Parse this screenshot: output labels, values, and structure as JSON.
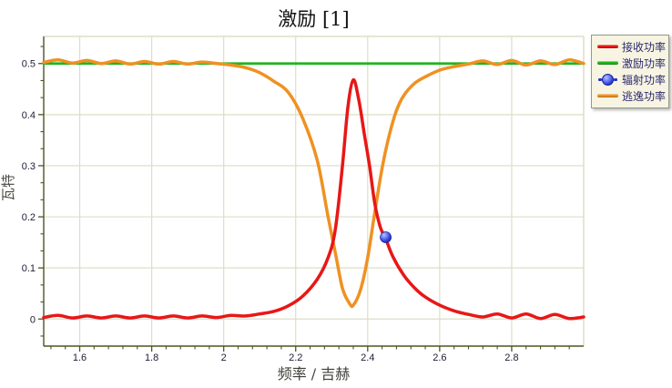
{
  "window": {
    "background": "#ffffff"
  },
  "colors": {
    "axis_dark": "#4c5624",
    "frame_light": "#d8d8bd",
    "gridline": "#deddc7",
    "tick_label": "#20203a",
    "axis_title": "#4a4a44",
    "title_text": "#121212",
    "legend_bg": "#f8f4e2",
    "legend_border": "#97978b",
    "legend_text": "#2a2a6e"
  },
  "chart_data": {
    "type": "line",
    "title": "激励 [1]",
    "xlabel": "频率 / 吉赫",
    "ylabel": "瓦特",
    "grid": true,
    "legend_position": "top-right-outside",
    "xlim": [
      1.5,
      3.0
    ],
    "ylim": [
      -0.053,
      0.553
    ],
    "xticks": {
      "values": [
        1.6,
        1.8,
        2.0,
        2.2,
        2.4,
        2.6,
        2.8
      ],
      "labels": [
        "1.6",
        "1.8",
        "2",
        "2.2",
        "2.4",
        "2.6",
        "2.8"
      ]
    },
    "yticks": {
      "values": [
        0,
        0.1,
        0.2,
        0.3,
        0.4,
        0.5
      ],
      "labels": [
        "0",
        "0.1",
        "0.2",
        "0.3",
        "0.4",
        "0.5"
      ]
    },
    "x_minor_step": 0.04,
    "y_minor_step": 0.03333,
    "series": [
      {
        "name": "接收功率",
        "kind": "line",
        "color": "#e81717",
        "width": 3.5,
        "points": [
          [
            1.5,
            0.003
          ],
          [
            1.54,
            0.007
          ],
          [
            1.58,
            0.002
          ],
          [
            1.62,
            0.006
          ],
          [
            1.66,
            0.002
          ],
          [
            1.7,
            0.006
          ],
          [
            1.74,
            0.002
          ],
          [
            1.78,
            0.006
          ],
          [
            1.82,
            0.002
          ],
          [
            1.86,
            0.006
          ],
          [
            1.9,
            0.002
          ],
          [
            1.94,
            0.006
          ],
          [
            1.98,
            0.003
          ],
          [
            2.02,
            0.007
          ],
          [
            2.06,
            0.006
          ],
          [
            2.1,
            0.01
          ],
          [
            2.14,
            0.015
          ],
          [
            2.18,
            0.026
          ],
          [
            2.22,
            0.045
          ],
          [
            2.26,
            0.078
          ],
          [
            2.29,
            0.12
          ],
          [
            2.31,
            0.175
          ],
          [
            2.33,
            0.3
          ],
          [
            2.345,
            0.415
          ],
          [
            2.36,
            0.468
          ],
          [
            2.375,
            0.43
          ],
          [
            2.39,
            0.365
          ],
          [
            2.405,
            0.3
          ],
          [
            2.42,
            0.225
          ],
          [
            2.435,
            0.18
          ],
          [
            2.45,
            0.157
          ],
          [
            2.47,
            0.122
          ],
          [
            2.5,
            0.086
          ],
          [
            2.53,
            0.061
          ],
          [
            2.56,
            0.043
          ],
          [
            2.6,
            0.027
          ],
          [
            2.64,
            0.016
          ],
          [
            2.68,
            0.009
          ],
          [
            2.72,
            0.004
          ],
          [
            2.76,
            0.01
          ],
          [
            2.8,
            0.002
          ],
          [
            2.84,
            0.01
          ],
          [
            2.88,
            0.001
          ],
          [
            2.92,
            0.009
          ],
          [
            2.96,
            0.001
          ],
          [
            3.0,
            0.004
          ]
        ]
      },
      {
        "name": "激励功率",
        "kind": "line",
        "color": "#1fb41f",
        "width": 2.8,
        "points": [
          [
            1.5,
            0.5
          ],
          [
            3.0,
            0.5
          ]
        ]
      },
      {
        "name": "辐射功率",
        "kind": "point",
        "color": "#2334cc",
        "width": 0,
        "points": [
          [
            2.45,
            0.16
          ]
        ]
      },
      {
        "name": "逃逸功率",
        "kind": "line",
        "color": "#ef9122",
        "width": 3.5,
        "points": [
          [
            1.5,
            0.502
          ],
          [
            1.54,
            0.507
          ],
          [
            1.58,
            0.501
          ],
          [
            1.62,
            0.506
          ],
          [
            1.66,
            0.5
          ],
          [
            1.7,
            0.505
          ],
          [
            1.74,
            0.499
          ],
          [
            1.78,
            0.504
          ],
          [
            1.82,
            0.499
          ],
          [
            1.86,
            0.504
          ],
          [
            1.9,
            0.499
          ],
          [
            1.94,
            0.503
          ],
          [
            1.98,
            0.5
          ],
          [
            2.02,
            0.497
          ],
          [
            2.06,
            0.492
          ],
          [
            2.1,
            0.482
          ],
          [
            2.14,
            0.465
          ],
          [
            2.18,
            0.443
          ],
          [
            2.22,
            0.392
          ],
          [
            2.26,
            0.31
          ],
          [
            2.29,
            0.2
          ],
          [
            2.31,
            0.13
          ],
          [
            2.33,
            0.06
          ],
          [
            2.35,
            0.03
          ],
          [
            2.36,
            0.027
          ],
          [
            2.38,
            0.057
          ],
          [
            2.4,
            0.12
          ],
          [
            2.42,
            0.21
          ],
          [
            2.44,
            0.295
          ],
          [
            2.46,
            0.36
          ],
          [
            2.48,
            0.408
          ],
          [
            2.5,
            0.437
          ],
          [
            2.53,
            0.461
          ],
          [
            2.56,
            0.474
          ],
          [
            2.6,
            0.487
          ],
          [
            2.64,
            0.494
          ],
          [
            2.68,
            0.499
          ],
          [
            2.72,
            0.505
          ],
          [
            2.76,
            0.498
          ],
          [
            2.8,
            0.506
          ],
          [
            2.84,
            0.497
          ],
          [
            2.88,
            0.505
          ],
          [
            2.92,
            0.498
          ],
          [
            2.96,
            0.507
          ],
          [
            3.0,
            0.5
          ]
        ]
      }
    ],
    "legend": [
      {
        "label": "接收功率",
        "swatch": "line",
        "color": "#e81717"
      },
      {
        "label": "激励功率",
        "swatch": "line",
        "color": "#1fb41f"
      },
      {
        "label": "辐射功率",
        "swatch": "point",
        "color": "#2334cc"
      },
      {
        "label": "逃逸功率",
        "swatch": "line",
        "color": "#ef9122"
      }
    ]
  }
}
